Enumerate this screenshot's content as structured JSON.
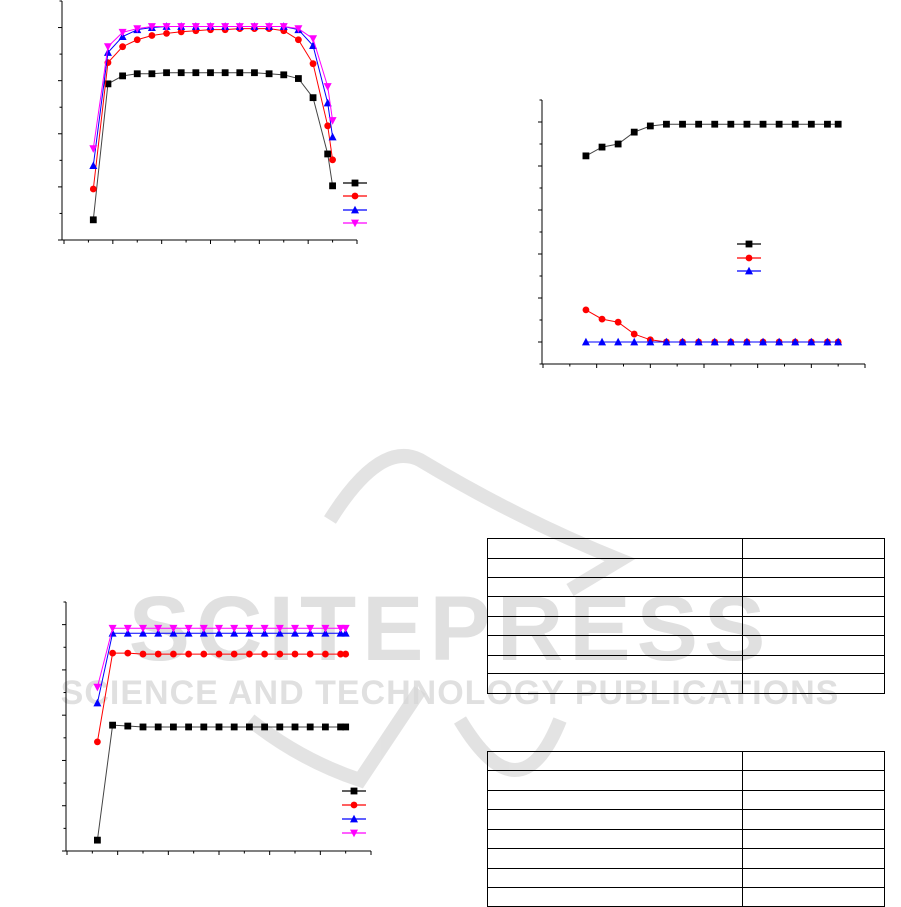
{
  "watermark": {
    "lettering": "SCITEPRESS",
    "subtitle": "SCIENCE AND TECHNOLOGY PUBLICATIONS",
    "color": "#d8d8d8"
  },
  "chart_data": [
    {
      "type": "line",
      "xlim": [
        0,
        12
      ],
      "ylim": [
        0,
        4.5
      ],
      "grid": false,
      "legend": "bottom-right",
      "series": [
        {
          "color": "#000000",
          "marker": "square",
          "x": [
            1.2,
            1.8,
            2.4,
            3.0,
            3.6,
            4.2,
            4.8,
            5.4,
            6.0,
            6.6,
            7.2,
            7.8,
            8.4,
            9.0,
            9.6,
            10.2,
            10.8,
            11.0
          ],
          "y": [
            0.38,
            2.94,
            3.09,
            3.13,
            3.13,
            3.15,
            3.15,
            3.15,
            3.15,
            3.15,
            3.15,
            3.15,
            3.13,
            3.11,
            3.04,
            2.68,
            1.62,
            1.02
          ]
        },
        {
          "color": "#ff0000",
          "marker": "circle",
          "x": [
            1.2,
            1.8,
            2.4,
            3.0,
            3.6,
            4.2,
            4.8,
            5.4,
            6.0,
            6.6,
            7.2,
            7.8,
            8.4,
            9.0,
            9.6,
            10.2,
            10.8,
            11.0
          ],
          "y": [
            0.96,
            3.34,
            3.64,
            3.77,
            3.85,
            3.89,
            3.92,
            3.94,
            3.96,
            3.96,
            3.98,
            3.98,
            3.98,
            3.94,
            3.77,
            3.32,
            2.15,
            1.51
          ]
        },
        {
          "color": "#0000ff",
          "marker": "triangle-up",
          "x": [
            1.2,
            1.8,
            2.4,
            3.0,
            3.6,
            4.2,
            4.8,
            5.4,
            6.0,
            6.6,
            7.2,
            7.8,
            8.4,
            9.0,
            9.6,
            10.2,
            10.8,
            11.0
          ],
          "y": [
            1.4,
            3.53,
            3.83,
            3.96,
            4.0,
            4.02,
            4.02,
            4.02,
            4.02,
            4.02,
            4.02,
            4.02,
            4.02,
            4.02,
            3.96,
            3.66,
            2.58,
            1.94
          ]
        },
        {
          "color": "#ff00ff",
          "marker": "triangle-down",
          "x": [
            1.2,
            1.8,
            2.4,
            3.0,
            3.6,
            4.2,
            4.8,
            5.4,
            6.0,
            6.6,
            7.2,
            7.8,
            8.4,
            9.0,
            9.6,
            10.2,
            10.8,
            11.0
          ],
          "y": [
            1.72,
            3.64,
            3.91,
            3.98,
            4.02,
            4.02,
            4.02,
            4.02,
            4.02,
            4.02,
            4.02,
            4.02,
            4.02,
            4.02,
            3.98,
            3.79,
            2.89,
            2.25
          ]
        }
      ]
    },
    {
      "type": "line",
      "xlim": [
        0,
        12
      ],
      "ylim": [
        -0.5,
        5.5
      ],
      "grid": false,
      "legend": "center-right",
      "series": [
        {
          "color": "#000000",
          "marker": "square",
          "x": [
            1.6,
            2.2,
            2.8,
            3.4,
            4.0,
            4.6,
            5.2,
            5.8,
            6.4,
            7.0,
            7.6,
            8.2,
            8.8,
            9.4,
            10.0,
            10.6,
            11.0
          ],
          "y": [
            4.23,
            4.43,
            4.5,
            4.77,
            4.91,
            4.95,
            4.95,
            4.95,
            4.95,
            4.95,
            4.95,
            4.95,
            4.95,
            4.95,
            4.95,
            4.95,
            4.95
          ]
        },
        {
          "color": "#ff0000",
          "marker": "circle",
          "x": [
            1.6,
            2.2,
            2.8,
            3.4,
            4.0,
            4.6,
            5.2,
            5.8,
            6.4,
            7.0,
            7.6,
            8.2,
            8.8,
            9.4,
            10.0,
            10.6,
            11.0
          ],
          "y": [
            0.73,
            0.52,
            0.45,
            0.18,
            0.05,
            0,
            0,
            0,
            0,
            0,
            0,
            0,
            0,
            0,
            0,
            0,
            0
          ]
        },
        {
          "color": "#0000ff",
          "marker": "triangle-up",
          "x": [
            1.6,
            2.2,
            2.8,
            3.4,
            4.0,
            4.6,
            5.2,
            5.8,
            6.4,
            7.0,
            7.6,
            8.2,
            8.8,
            9.4,
            10.0,
            10.6,
            11.0
          ],
          "y": [
            0,
            0,
            0,
            0,
            0,
            0,
            0,
            0,
            0,
            0,
            0,
            0,
            0,
            0,
            0,
            0,
            0
          ]
        }
      ]
    },
    {
      "type": "line",
      "xlim": [
        0,
        12
      ],
      "ylim": [
        0,
        5.5
      ],
      "grid": false,
      "legend": "bottom-right",
      "series": [
        {
          "color": "#000000",
          "marker": "square",
          "x": [
            1.2,
            1.8,
            2.4,
            3.0,
            3.6,
            4.2,
            4.8,
            5.4,
            6.0,
            6.6,
            7.2,
            7.8,
            8.4,
            9.0,
            9.6,
            10.2,
            10.8,
            11.0
          ],
          "y": [
            0.24,
            2.78,
            2.76,
            2.74,
            2.74,
            2.74,
            2.74,
            2.74,
            2.74,
            2.74,
            2.74,
            2.74,
            2.74,
            2.74,
            2.74,
            2.74,
            2.74,
            2.74
          ]
        },
        {
          "color": "#ff0000",
          "marker": "circle",
          "x": [
            1.2,
            1.8,
            2.4,
            3.0,
            3.6,
            4.2,
            4.8,
            5.4,
            6.0,
            6.6,
            7.2,
            7.8,
            8.4,
            9.0,
            9.6,
            10.2,
            10.8,
            11.0
          ],
          "y": [
            2.41,
            4.37,
            4.37,
            4.35,
            4.35,
            4.35,
            4.35,
            4.35,
            4.35,
            4.35,
            4.35,
            4.35,
            4.35,
            4.35,
            4.35,
            4.35,
            4.35,
            4.35
          ]
        },
        {
          "color": "#0000ff",
          "marker": "triangle-up",
          "x": [
            1.2,
            1.8,
            2.4,
            3.0,
            3.6,
            4.2,
            4.8,
            5.4,
            6.0,
            6.6,
            7.2,
            7.8,
            8.4,
            9.0,
            9.6,
            10.2,
            10.8,
            11.0
          ],
          "y": [
            3.27,
            4.81,
            4.81,
            4.81,
            4.81,
            4.81,
            4.81,
            4.81,
            4.81,
            4.81,
            4.81,
            4.81,
            4.81,
            4.81,
            4.81,
            4.81,
            4.81,
            4.81
          ]
        },
        {
          "color": "#ff00ff",
          "marker": "triangle-down",
          "x": [
            1.2,
            1.8,
            2.4,
            3.0,
            3.6,
            4.2,
            4.8,
            5.4,
            6.0,
            6.6,
            7.2,
            7.8,
            8.4,
            9.0,
            9.6,
            10.2,
            10.8,
            11.0
          ],
          "y": [
            3.62,
            4.92,
            4.92,
            4.92,
            4.92,
            4.92,
            4.92,
            4.92,
            4.92,
            4.92,
            4.92,
            4.92,
            4.92,
            4.92,
            4.92,
            4.92,
            4.92,
            4.92
          ]
        }
      ]
    }
  ],
  "tables": [
    {
      "rows": [
        [
          "",
          ""
        ],
        [
          "",
          ""
        ],
        [
          "",
          ""
        ],
        [
          "",
          ""
        ],
        [
          "",
          ""
        ],
        [
          "",
          ""
        ],
        [
          "",
          ""
        ],
        [
          "",
          ""
        ]
      ]
    },
    {
      "rows": [
        [
          "",
          ""
        ],
        [
          "",
          ""
        ],
        [
          "",
          ""
        ],
        [
          "",
          ""
        ],
        [
          "",
          ""
        ],
        [
          "",
          ""
        ],
        [
          "",
          ""
        ],
        [
          "",
          ""
        ]
      ]
    }
  ]
}
